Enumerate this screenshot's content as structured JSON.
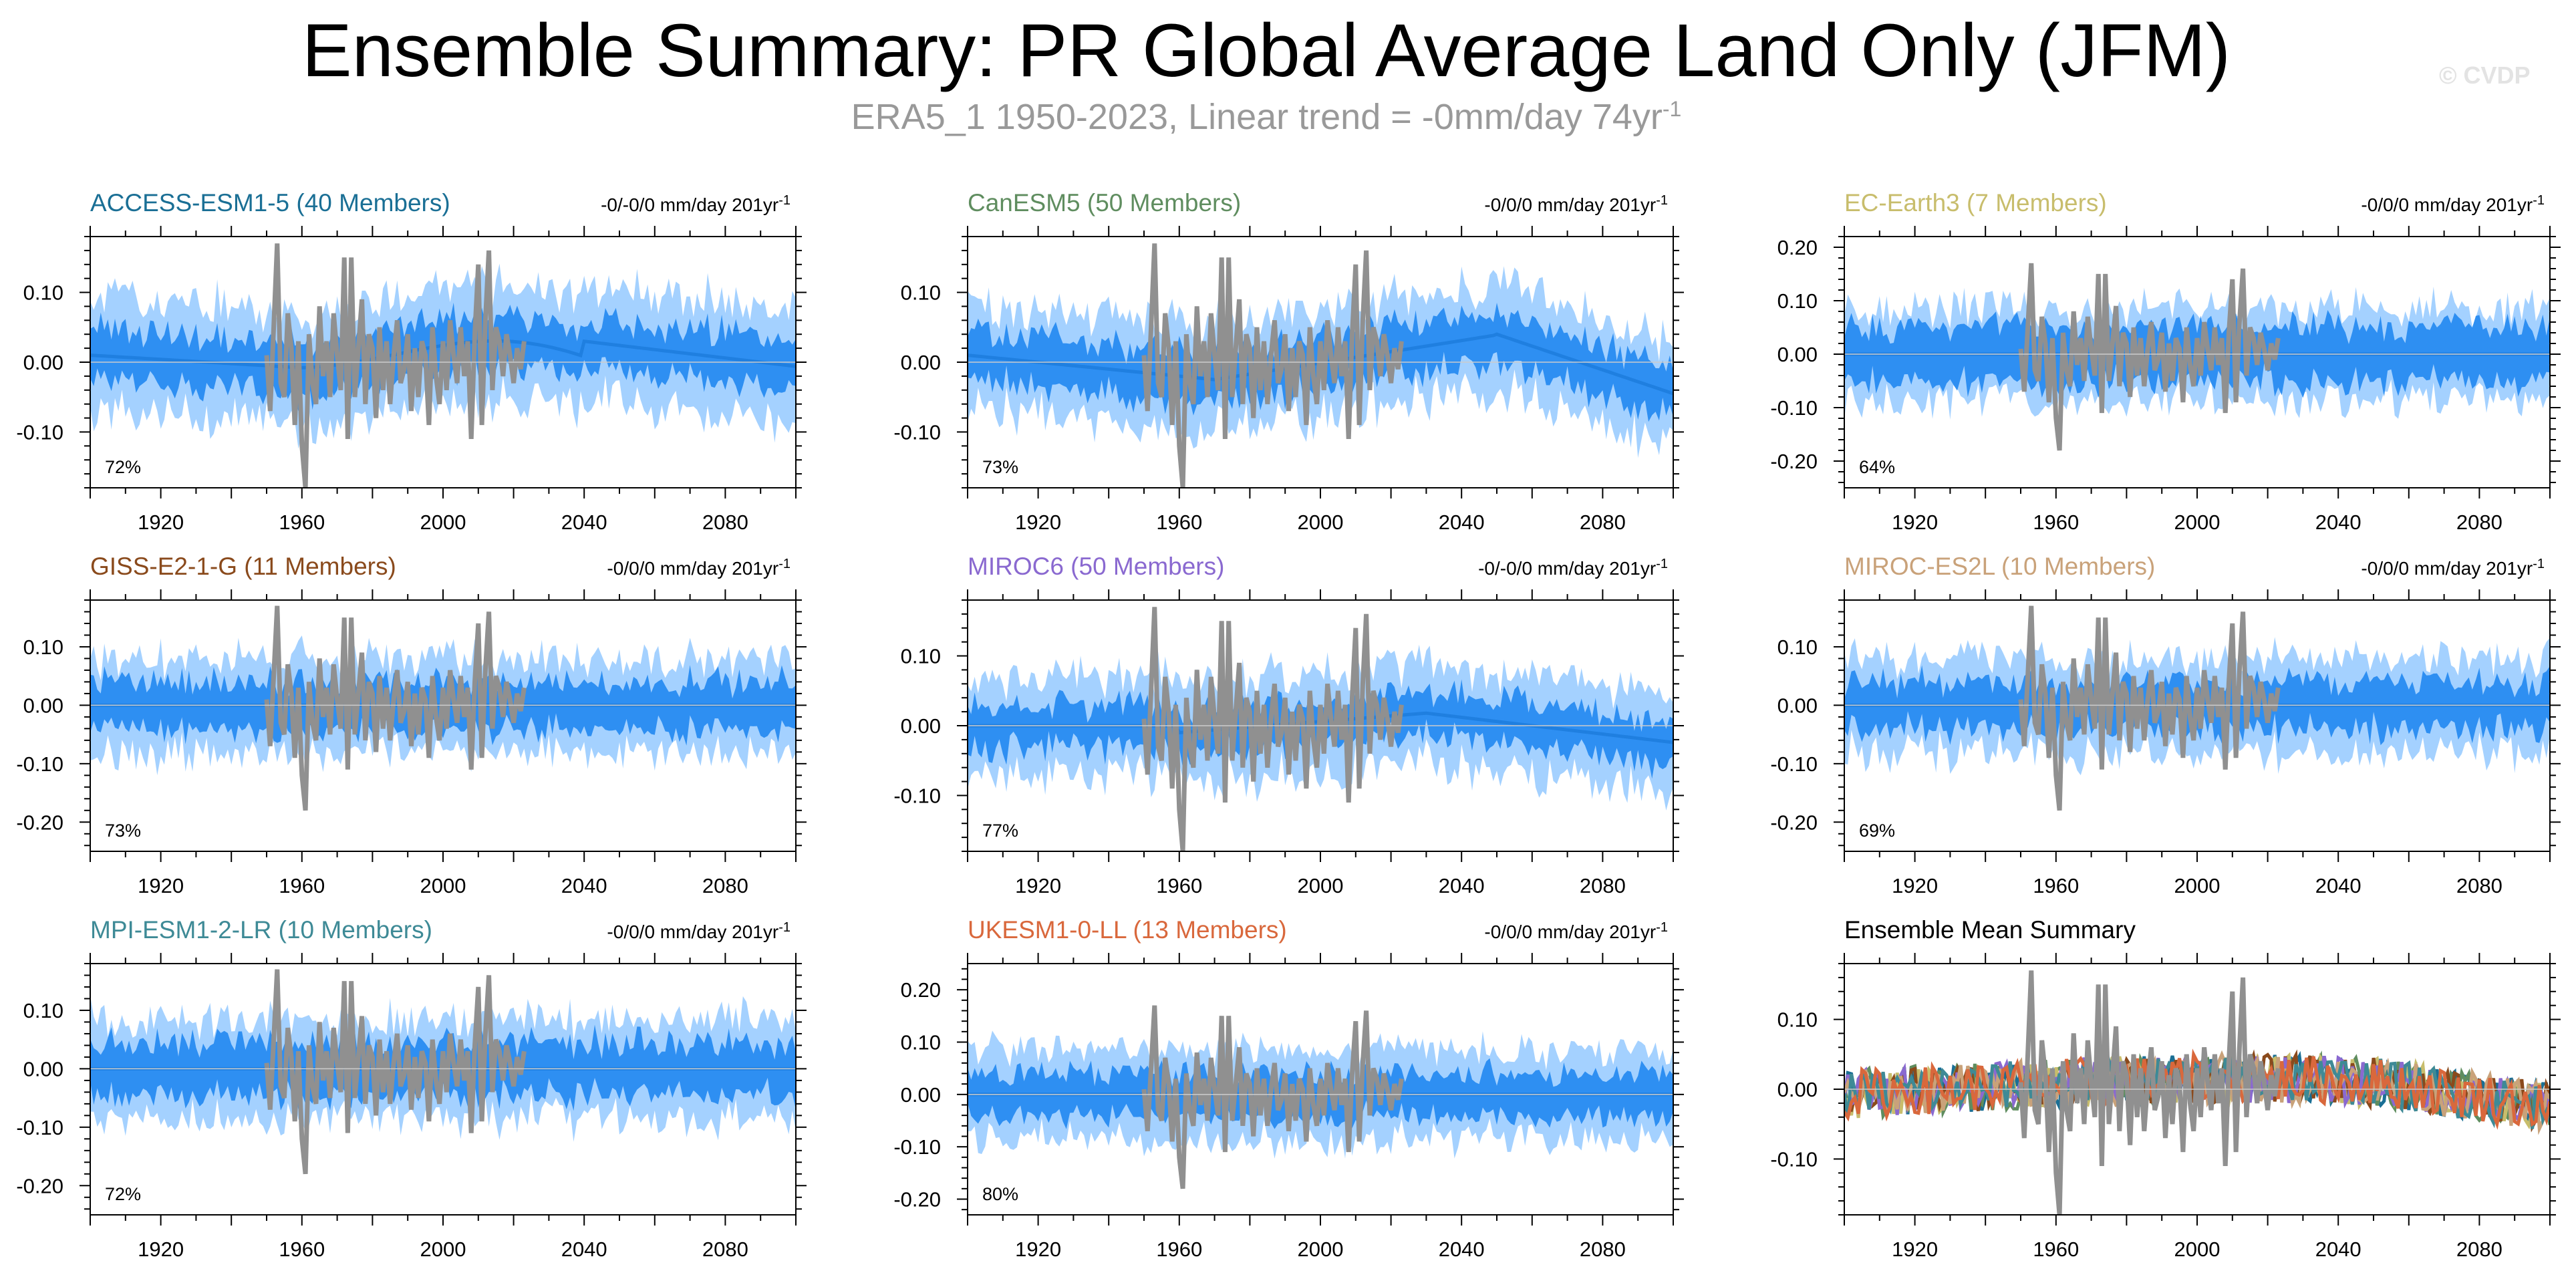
{
  "title": "Ensemble Summary: PR Global Average Land Only (JFM)",
  "subtitle": {
    "text": "ERA5_1 1950-2023, Linear trend = -0mm/day 74yr",
    "superscript": "-1"
  },
  "watermark": "© CVDP",
  "colors": {
    "spread_outer": "#a4d1ff",
    "spread_inner": "#2e8ff2",
    "ens_mean": "#1f7fe0",
    "observed": "#909090"
  },
  "chart_data": [
    {
      "type": "area",
      "title": "ACCESS-ESM1-5 (40 Members)",
      "title_color": "#1a6f95",
      "trend": "-0/-0/0 mm/day 201yr",
      "trend_sup": "-1",
      "pct": "72%",
      "xlim": [
        1900,
        2100
      ],
      "ylim": [
        -0.18,
        0.18
      ],
      "xticks": [
        "1920",
        "1960",
        "2000",
        "2040",
        "2080"
      ],
      "yticks": [
        {
          "v": 0.1,
          "label": "0.10"
        },
        {
          "v": 0.0,
          "label": "0.00"
        },
        {
          "v": -0.1,
          "label": "-0.10"
        }
      ],
      "mean_shape": "access",
      "outer_halfwidth": 0.085,
      "inner_halfwidth": 0.035
    },
    {
      "type": "area",
      "title": "CanESM5 (50 Members)",
      "title_color": "#5f8d5f",
      "trend": "-0/0/0 mm/day 201yr",
      "trend_sup": "-1",
      "pct": "73%",
      "xlim": [
        1900,
        2100
      ],
      "ylim": [
        -0.18,
        0.18
      ],
      "xticks": [
        "1920",
        "1960",
        "2000",
        "2040",
        "2080"
      ],
      "yticks": [
        {
          "v": 0.1,
          "label": "0.10"
        },
        {
          "v": 0.0,
          "label": "0.00"
        },
        {
          "v": -0.1,
          "label": "-0.10"
        }
      ],
      "mean_shape": "canesm",
      "outer_halfwidth": 0.08,
      "inner_halfwidth": 0.035
    },
    {
      "type": "area",
      "title": "EC-Earth3 (7 Members)",
      "title_color": "#c8bd6c",
      "trend": "-0/0/0 mm/day 201yr",
      "trend_sup": "-1",
      "pct": "64%",
      "xlim": [
        1900,
        2100
      ],
      "ylim": [
        -0.25,
        0.22
      ],
      "xticks": [
        "1920",
        "1960",
        "2000",
        "2040",
        "2080"
      ],
      "yticks": [
        {
          "v": 0.2,
          "label": "0.20"
        },
        {
          "v": 0.1,
          "label": "0.10"
        },
        {
          "v": 0.0,
          "label": "0.00"
        },
        {
          "v": -0.1,
          "label": "-0.10"
        },
        {
          "v": -0.2,
          "label": "-0.20"
        }
      ],
      "mean_shape": "flat",
      "outer_halfwidth": 0.09,
      "inner_halfwidth": 0.05
    },
    {
      "type": "area",
      "title": "GISS-E2-1-G (11 Members)",
      "title_color": "#8a4a1c",
      "trend": "-0/0/0 mm/day 201yr",
      "trend_sup": "-1",
      "pct": "73%",
      "xlim": [
        1900,
        2100
      ],
      "ylim": [
        -0.25,
        0.18
      ],
      "xticks": [
        "1920",
        "1960",
        "2000",
        "2040",
        "2080"
      ],
      "yticks": [
        {
          "v": 0.1,
          "label": "0.10"
        },
        {
          "v": 0.0,
          "label": "0.00"
        },
        {
          "v": -0.1,
          "label": "-0.10"
        },
        {
          "v": -0.2,
          "label": "-0.20"
        }
      ],
      "mean_shape": "flat",
      "outer_halfwidth": 0.085,
      "inner_halfwidth": 0.04
    },
    {
      "type": "area",
      "title": "MIROC6 (50 Members)",
      "title_color": "#8a69d0",
      "trend": "-0/-0/0 mm/day 201yr",
      "trend_sup": "-1",
      "pct": "77%",
      "xlim": [
        1900,
        2100
      ],
      "ylim": [
        -0.18,
        0.18
      ],
      "xticks": [
        "1920",
        "1960",
        "2000",
        "2040",
        "2080"
      ],
      "yticks": [
        {
          "v": 0.1,
          "label": "0.10"
        },
        {
          "v": 0.0,
          "label": "0.00"
        },
        {
          "v": -0.1,
          "label": "-0.10"
        }
      ],
      "mean_shape": "miroc6",
      "outer_halfwidth": 0.075,
      "inner_halfwidth": 0.03
    },
    {
      "type": "area",
      "title": "MIROC-ES2L (10 Members)",
      "title_color": "#c9a27a",
      "trend": "-0/0/0 mm/day 201yr",
      "trend_sup": "-1",
      "pct": "69%",
      "xlim": [
        1900,
        2100
      ],
      "ylim": [
        -0.25,
        0.18
      ],
      "xticks": [
        "1920",
        "1960",
        "2000",
        "2040",
        "2080"
      ],
      "yticks": [
        {
          "v": 0.1,
          "label": "0.10"
        },
        {
          "v": 0.0,
          "label": "0.00"
        },
        {
          "v": -0.1,
          "label": "-0.10"
        },
        {
          "v": -0.2,
          "label": "-0.20"
        }
      ],
      "mean_shape": "flat",
      "outer_halfwidth": 0.085,
      "inner_halfwidth": 0.04
    },
    {
      "type": "area",
      "title": "MPI-ESM1-2-LR (10 Members)",
      "title_color": "#3e8a96",
      "trend": "-0/0/0 mm/day 201yr",
      "trend_sup": "-1",
      "pct": "72%",
      "xlim": [
        1900,
        2100
      ],
      "ylim": [
        -0.25,
        0.18
      ],
      "xticks": [
        "1920",
        "1960",
        "2000",
        "2040",
        "2080"
      ],
      "yticks": [
        {
          "v": 0.1,
          "label": "0.10"
        },
        {
          "v": 0.0,
          "label": "0.00"
        },
        {
          "v": -0.1,
          "label": "-0.10"
        },
        {
          "v": -0.2,
          "label": "-0.20"
        }
      ],
      "mean_shape": "flat",
      "outer_halfwidth": 0.09,
      "inner_halfwidth": 0.045
    },
    {
      "type": "area",
      "title": "UKESM1-0-LL (13 Members)",
      "title_color": "#d9683c",
      "trend": "-0/0/0 mm/day 201yr",
      "trend_sup": "-1",
      "pct": "80%",
      "xlim": [
        1900,
        2100
      ],
      "ylim": [
        -0.23,
        0.25
      ],
      "xticks": [
        "1920",
        "1960",
        "2000",
        "2040",
        "2080"
      ],
      "yticks": [
        {
          "v": 0.2,
          "label": "0.20"
        },
        {
          "v": 0.1,
          "label": "0.10"
        },
        {
          "v": 0.0,
          "label": "0.00"
        },
        {
          "v": -0.1,
          "label": "-0.10"
        },
        {
          "v": -0.2,
          "label": "-0.20"
        }
      ],
      "mean_shape": "flat",
      "outer_halfwidth": 0.09,
      "inner_halfwidth": 0.04
    },
    {
      "type": "line",
      "title": "Ensemble Mean Summary",
      "title_color": "#000000",
      "trend": "",
      "trend_sup": "",
      "pct": "",
      "xlim": [
        1900,
        2100
      ],
      "ylim": [
        -0.18,
        0.18
      ],
      "xticks": [
        "1920",
        "1960",
        "2000",
        "2040",
        "2080"
      ],
      "yticks": [
        {
          "v": 0.1,
          "label": "0.10"
        },
        {
          "v": 0.0,
          "label": "0.00"
        },
        {
          "v": -0.1,
          "label": "-0.10"
        }
      ],
      "series_colors": [
        "#1a6f95",
        "#5f8d5f",
        "#c8bd6c",
        "#8a4a1c",
        "#8a69d0",
        "#c9a27a",
        "#3e8a96",
        "#d9683c"
      ]
    }
  ],
  "observed": {
    "name": "ERA5_1",
    "years": [
      1950,
      1951,
      1952,
      1953,
      1954,
      1955,
      1956,
      1957,
      1958,
      1959,
      1960,
      1961,
      1962,
      1963,
      1964,
      1965,
      1966,
      1967,
      1968,
      1969,
      1970,
      1971,
      1972,
      1973,
      1974,
      1975,
      1976,
      1977,
      1978,
      1979,
      1980,
      1981,
      1982,
      1983,
      1984,
      1985,
      1986,
      1987,
      1988,
      1989,
      1990,
      1991,
      1992,
      1993,
      1994,
      1995,
      1996,
      1997,
      1998,
      1999,
      2000,
      2001,
      2002,
      2003,
      2004,
      2005,
      2006,
      2007,
      2008,
      2009,
      2010,
      2011,
      2012,
      2013,
      2014,
      2015,
      2016,
      2017,
      2018,
      2019,
      2020,
      2021,
      2022,
      2023
    ],
    "values": [
      0.01,
      -0.07,
      0.05,
      0.17,
      -0.03,
      -0.05,
      0.07,
      0.02,
      -0.09,
      0.03,
      -0.12,
      -0.18,
      0.04,
      -0.03,
      -0.06,
      0.08,
      -0.02,
      0.03,
      -0.05,
      0.07,
      0.01,
      -0.04,
      0.15,
      -0.11,
      0.15,
      -0.05,
      0.02,
      0.09,
      -0.06,
      0.04,
      0.02,
      -0.08,
      0.05,
      -0.04,
      0.03,
      -0.06,
      0.01,
      0.06,
      -0.03,
      -0.01,
      0.04,
      -0.07,
      0.02,
      -0.05,
      0.03,
      0.01,
      -0.09,
      0.05,
      -0.02,
      -0.06,
      0.03,
      -0.04,
      0.06,
      0.01,
      -0.03,
      0.05,
      -0.02,
      0.03,
      -0.11,
      0.04,
      0.14,
      -0.09,
      0.06,
      0.16,
      -0.04,
      0.05,
      0.03,
      -0.02,
      0.04,
      0.01,
      -0.03,
      0.02,
      -0.01,
      0.03
    ]
  }
}
